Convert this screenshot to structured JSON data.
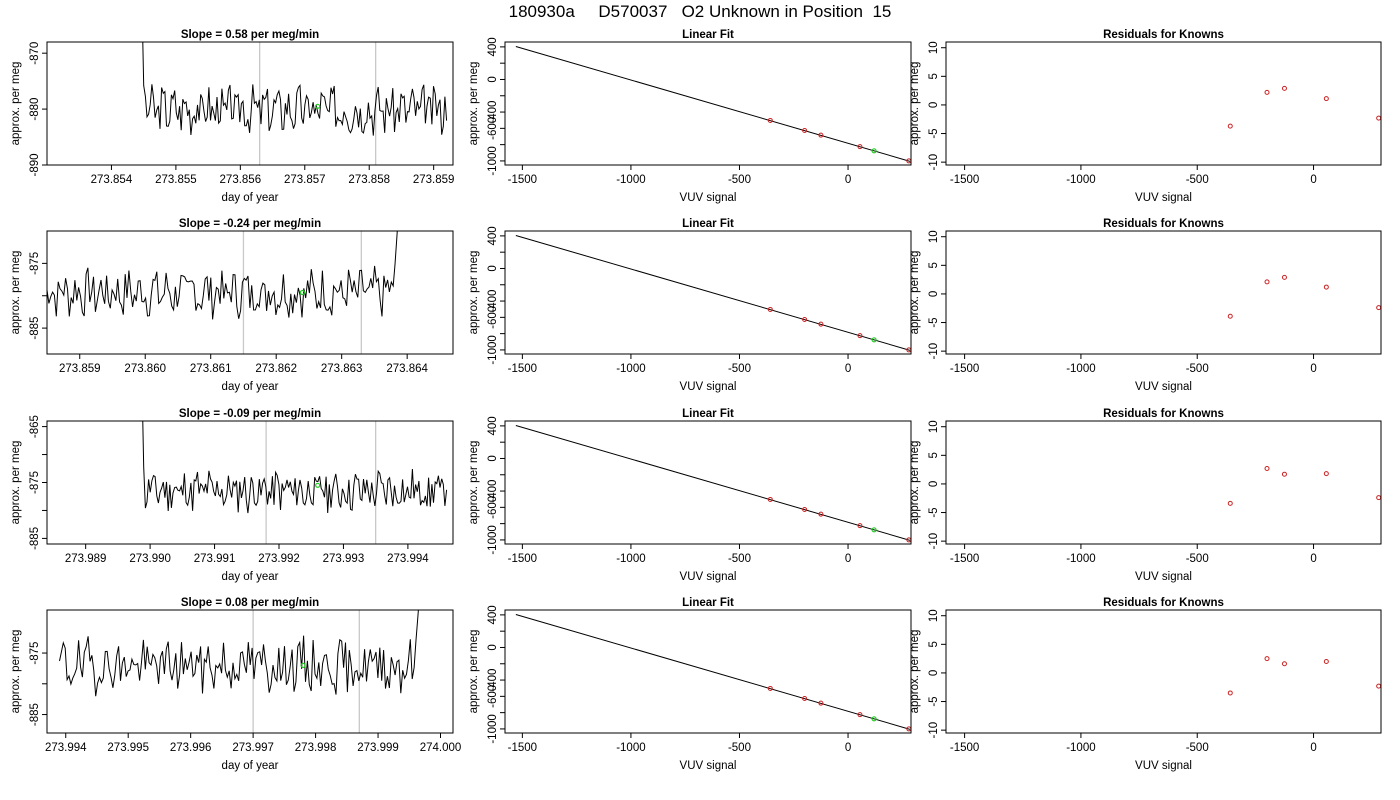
{
  "figure": {
    "title": "180930a     D570037   O2 Unknown in Position  15",
    "colors": {
      "trace": "#000000",
      "vline": "#c8c8c8",
      "known": "#cc2222",
      "unknown": "#22cc22",
      "fit": "#000000"
    }
  },
  "chart_data": [
    {
      "type": "line",
      "row": 1,
      "panel": "timeseries",
      "title": "Slope =  0.58  per meg/min",
      "xlabel": "day of year",
      "ylabel": "approx. per meg",
      "xlim": [
        273.853,
        273.8593
      ],
      "ylim": [
        -890,
        -868
      ],
      "xticks": [
        273.854,
        273.855,
        273.856,
        273.857,
        273.858,
        273.859
      ],
      "xtick_labels": [
        "273.854",
        "273.855",
        "273.856",
        "273.857",
        "273.858",
        "273.859"
      ],
      "yticks": [
        -890,
        -880,
        -870
      ],
      "ytick_labels": [
        "-890",
        "-880",
        "-870"
      ],
      "trace": {
        "x_start": 273.8544,
        "x_end": 273.8592,
        "level": -880,
        "noise": 2.3,
        "spike": "start",
        "seed": 3
      },
      "vlines": [
        273.8563,
        273.8581
      ],
      "unknown_point": {
        "x": 273.8572,
        "y": -879.5
      }
    },
    {
      "type": "scatter",
      "row": 1,
      "panel": "fit",
      "title": "Linear Fit",
      "xlabel": "VUV signal",
      "ylabel": "approx. per meg",
      "xlim": [
        -1580,
        290
      ],
      "ylim": [
        -1050,
        460
      ],
      "xticks": [
        -1500,
        -1000,
        -500,
        0
      ],
      "xtick_labels": [
        "-1500",
        "-1000",
        "-500",
        "0"
      ],
      "yticks": [
        -1000,
        -800,
        -600,
        -400,
        -200,
        0,
        200,
        400
      ],
      "ytick_labels": [
        "-1000",
        "",
        "-600",
        "-400",
        "",
        "0",
        "",
        "400"
      ],
      "line": {
        "x1": -1530,
        "y1": 405,
        "x2": 285,
        "y2": -1005
      },
      "knowns": [
        {
          "x": -358,
          "y": -503
        },
        {
          "x": -200,
          "y": -626
        },
        {
          "x": -125,
          "y": -684
        },
        {
          "x": 55,
          "y": -825
        },
        {
          "x": 280,
          "y": -1000
        }
      ],
      "unknown": {
        "x": 120,
        "y": -876
      }
    },
    {
      "type": "scatter",
      "row": 1,
      "panel": "residuals",
      "title": "Residuals for Knowns",
      "xlabel": "VUV signal",
      "ylabel": "approx. per meg",
      "xlim": [
        -1580,
        290
      ],
      "ylim": [
        -10.5,
        11
      ],
      "xticks": [
        -1500,
        -1000,
        -500,
        0
      ],
      "xtick_labels": [
        "-1500",
        "-1000",
        "-500",
        "0"
      ],
      "yticks": [
        -10,
        -5,
        0,
        5,
        10
      ],
      "ytick_labels": [
        "-10",
        "-5",
        "0",
        "5",
        "10"
      ],
      "points": [
        {
          "x": -358,
          "y": -3.7
        },
        {
          "x": -200,
          "y": 2.2
        },
        {
          "x": -125,
          "y": 2.9
        },
        {
          "x": 55,
          "y": 1.1
        },
        {
          "x": 280,
          "y": -2.3
        }
      ]
    },
    {
      "type": "line",
      "row": 2,
      "panel": "timeseries",
      "title": "Slope =  -0.24  per meg/min",
      "xlabel": "day of year",
      "ylabel": "approx. per meg",
      "xlim": [
        273.8585,
        273.8647
      ],
      "ylim": [
        -889,
        -870
      ],
      "xticks": [
        273.859,
        273.86,
        273.861,
        273.862,
        273.863,
        273.864
      ],
      "xtick_labels": [
        "273.859",
        "273.860",
        "273.861",
        "273.862",
        "273.863",
        "273.864"
      ],
      "yticks": [
        -885,
        -880,
        -875
      ],
      "ytick_labels": [
        "-885",
        "",
        "-875"
      ],
      "trace": {
        "x_start": 273.8585,
        "x_end": 273.8639,
        "level": -879.5,
        "noise": 2.0,
        "spike": "end",
        "seed": 7
      },
      "vlines": [
        273.8615,
        273.8633
      ],
      "unknown_point": {
        "x": 273.8624,
        "y": -879.5
      }
    },
    {
      "type": "scatter",
      "row": 2,
      "panel": "fit",
      "title": "Linear Fit",
      "xlabel": "VUV signal",
      "ylabel": "approx. per meg",
      "xlim": [
        -1580,
        290
      ],
      "ylim": [
        -1050,
        460
      ],
      "xticks": [
        -1500,
        -1000,
        -500,
        0
      ],
      "xtick_labels": [
        "-1500",
        "-1000",
        "-500",
        "0"
      ],
      "yticks": [
        -1000,
        -800,
        -600,
        -400,
        -200,
        0,
        200,
        400
      ],
      "ytick_labels": [
        "-1000",
        "",
        "-600",
        "-400",
        "",
        "0",
        "",
        "400"
      ],
      "line": {
        "x1": -1530,
        "y1": 405,
        "x2": 285,
        "y2": -1005
      },
      "knowns": [
        {
          "x": -358,
          "y": -503
        },
        {
          "x": -200,
          "y": -626
        },
        {
          "x": -125,
          "y": -684
        },
        {
          "x": 55,
          "y": -825
        },
        {
          "x": 280,
          "y": -1000
        }
      ],
      "unknown": {
        "x": 120,
        "y": -876
      }
    },
    {
      "type": "scatter",
      "row": 2,
      "panel": "residuals",
      "title": "Residuals for Knowns",
      "xlabel": "VUV signal",
      "ylabel": "approx. per meg",
      "xlim": [
        -1580,
        290
      ],
      "ylim": [
        -10.5,
        11
      ],
      "xticks": [
        -1500,
        -1000,
        -500,
        0
      ],
      "xtick_labels": [
        "-1500",
        "-1000",
        "-500",
        "0"
      ],
      "yticks": [
        -10,
        -5,
        0,
        5,
        10
      ],
      "ytick_labels": [
        "-10",
        "-5",
        "0",
        "5",
        "10"
      ],
      "points": [
        {
          "x": -358,
          "y": -3.9
        },
        {
          "x": -200,
          "y": 2.1
        },
        {
          "x": -125,
          "y": 2.9
        },
        {
          "x": 55,
          "y": 1.2
        },
        {
          "x": 280,
          "y": -2.4
        }
      ]
    },
    {
      "type": "line",
      "row": 3,
      "panel": "timeseries",
      "title": "Slope =  -0.09  per meg/min",
      "xlabel": "day of year",
      "ylabel": "approx. per meg",
      "xlim": [
        273.9884,
        273.9947
      ],
      "ylim": [
        -886,
        -864
      ],
      "xticks": [
        273.989,
        273.99,
        273.991,
        273.992,
        273.993,
        273.994
      ],
      "xtick_labels": [
        "273.989",
        "273.990",
        "273.991",
        "273.992",
        "273.993",
        "273.994"
      ],
      "yticks": [
        -885,
        -880,
        -875,
        -870,
        -865
      ],
      "ytick_labels": [
        "-885",
        "",
        "-875",
        "",
        "-865"
      ],
      "trace": {
        "x_start": 273.9898,
        "x_end": 273.9946,
        "level": -876.5,
        "noise": 2.1,
        "spike": "start",
        "seed": 11
      },
      "vlines": [
        273.9918,
        273.9935
      ],
      "unknown_point": {
        "x": 273.9926,
        "y": -875.5
      }
    },
    {
      "type": "scatter",
      "row": 3,
      "panel": "fit",
      "title": "Linear Fit",
      "xlabel": "VUV signal",
      "ylabel": "approx. per meg",
      "xlim": [
        -1580,
        290
      ],
      "ylim": [
        -1050,
        460
      ],
      "xticks": [
        -1500,
        -1000,
        -500,
        0
      ],
      "xtick_labels": [
        "-1500",
        "-1000",
        "-500",
        "0"
      ],
      "yticks": [
        -1000,
        -800,
        -600,
        -400,
        -200,
        0,
        200,
        400
      ],
      "ytick_labels": [
        "-1000",
        "",
        "-600",
        "-400",
        "",
        "0",
        "",
        "400"
      ],
      "line": {
        "x1": -1530,
        "y1": 405,
        "x2": 285,
        "y2": -1005
      },
      "knowns": [
        {
          "x": -358,
          "y": -503
        },
        {
          "x": -200,
          "y": -626
        },
        {
          "x": -125,
          "y": -684
        },
        {
          "x": 55,
          "y": -825
        },
        {
          "x": 280,
          "y": -1000
        }
      ],
      "unknown": {
        "x": 120,
        "y": -876
      }
    },
    {
      "type": "scatter",
      "row": 3,
      "panel": "residuals",
      "title": "Residuals for Knowns",
      "xlabel": "VUV signal",
      "ylabel": "approx. per meg",
      "xlim": [
        -1580,
        290
      ],
      "ylim": [
        -10.5,
        11
      ],
      "xticks": [
        -1500,
        -1000,
        -500,
        0
      ],
      "xtick_labels": [
        "-1500",
        "-1000",
        "-500",
        "0"
      ],
      "yticks": [
        -10,
        -5,
        0,
        5,
        10
      ],
      "ytick_labels": [
        "-10",
        "-5",
        "0",
        "5",
        "10"
      ],
      "points": [
        {
          "x": -358,
          "y": -3.4
        },
        {
          "x": -200,
          "y": 2.7
        },
        {
          "x": -125,
          "y": 1.7
        },
        {
          "x": 55,
          "y": 1.8
        },
        {
          "x": 280,
          "y": -2.4
        }
      ]
    },
    {
      "type": "line",
      "row": 4,
      "panel": "timeseries",
      "title": "Slope =  0.08  per meg/min",
      "xlabel": "day of year",
      "ylabel": "approx. per meg",
      "xlim": [
        273.9937,
        274.0002
      ],
      "ylim": [
        -888,
        -868
      ],
      "xticks": [
        273.994,
        273.995,
        273.996,
        273.997,
        273.998,
        273.999,
        274.0
      ],
      "xtick_labels": [
        "273.994",
        "273.995",
        "273.996",
        "273.997",
        "273.998",
        "273.999",
        "274.000"
      ],
      "yticks": [
        -885,
        -880,
        -875
      ],
      "ytick_labels": [
        "-885",
        "",
        "-875"
      ],
      "trace": {
        "x_start": 273.9939,
        "x_end": 273.9997,
        "level": -877,
        "noise": 2.4,
        "spike": "end",
        "seed": 19
      },
      "vlines": [
        273.997,
        273.9987
      ],
      "unknown_point": {
        "x": 273.9978,
        "y": -877
      }
    },
    {
      "type": "scatter",
      "row": 4,
      "panel": "fit",
      "title": "Linear Fit",
      "xlabel": "VUV signal",
      "ylabel": "approx. per meg",
      "xlim": [
        -1580,
        290
      ],
      "ylim": [
        -1050,
        460
      ],
      "xticks": [
        -1500,
        -1000,
        -500,
        0
      ],
      "xtick_labels": [
        "-1500",
        "-1000",
        "-500",
        "0"
      ],
      "yticks": [
        -1000,
        -800,
        -600,
        -400,
        -200,
        0,
        200,
        400
      ],
      "ytick_labels": [
        "-1000",
        "",
        "-600",
        "-400",
        "",
        "0",
        "",
        "400"
      ],
      "line": {
        "x1": -1530,
        "y1": 405,
        "x2": 285,
        "y2": -1005
      },
      "knowns": [
        {
          "x": -358,
          "y": -503
        },
        {
          "x": -200,
          "y": -626
        },
        {
          "x": -125,
          "y": -684
        },
        {
          "x": 55,
          "y": -825
        },
        {
          "x": 280,
          "y": -1000
        }
      ],
      "unknown": {
        "x": 120,
        "y": -876
      }
    },
    {
      "type": "scatter",
      "row": 4,
      "panel": "residuals",
      "title": "Residuals for Knowns",
      "xlabel": "VUV signal",
      "ylabel": "approx. per meg",
      "xlim": [
        -1580,
        290
      ],
      "ylim": [
        -10.5,
        11
      ],
      "xticks": [
        -1500,
        -1000,
        -500,
        0
      ],
      "xtick_labels": [
        "-1500",
        "-1000",
        "-500",
        "0"
      ],
      "yticks": [
        -10,
        -5,
        0,
        5,
        10
      ],
      "ytick_labels": [
        "-10",
        "-5",
        "0",
        "5",
        "10"
      ],
      "points": [
        {
          "x": -358,
          "y": -3.5
        },
        {
          "x": -200,
          "y": 2.5
        },
        {
          "x": -125,
          "y": 1.6
        },
        {
          "x": 55,
          "y": 2.0
        },
        {
          "x": 280,
          "y": -2.3
        }
      ]
    }
  ]
}
